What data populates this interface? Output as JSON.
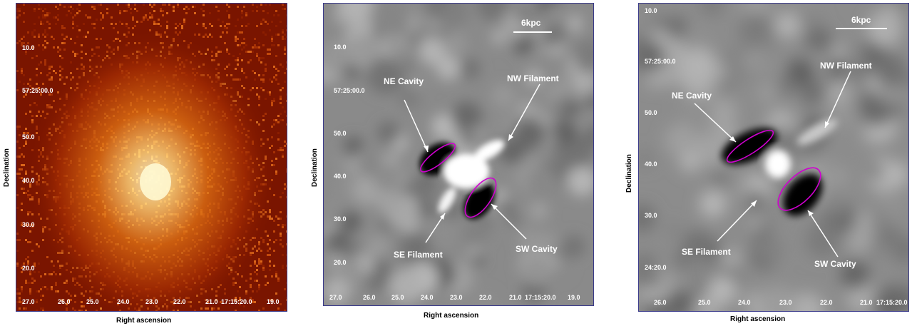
{
  "panels": [
    {
      "xlabel": "Right ascension",
      "ylabel": "Declination",
      "ra_ticks": [
        "27.0",
        "26.0",
        "25.0",
        "24.0",
        "23.0",
        "22.0",
        "21.0",
        "17:15:20.0",
        "19.0"
      ],
      "dec_ticks": [
        "10.0",
        "57:25:00.0",
        "50.0",
        "40.0",
        "30.0",
        "20.0"
      ]
    },
    {
      "xlabel": "Right ascension",
      "ylabel": "Declination",
      "scale": "6kpc",
      "ra_ticks": [
        "27.0",
        "26.0",
        "25.0",
        "24.0",
        "23.0",
        "22.0",
        "21.0",
        "17:15:20.0",
        "19.0"
      ],
      "dec_ticks": [
        "10.0",
        "57:25:00.0",
        "50.0",
        "40.0",
        "30.0",
        "20.0"
      ],
      "annotations": {
        "ne_cavity": "NE Cavity",
        "nw_filament": "NW Filament",
        "se_filament": "SE Filament",
        "sw_cavity": "SW Cavity"
      }
    },
    {
      "xlabel": "Right ascension",
      "ylabel": "Declination",
      "scale": "6kpc",
      "ra_ticks": [
        "26.0",
        "25.0",
        "24.0",
        "23.0",
        "22.0",
        "21.0",
        "17:15:20.0"
      ],
      "dec_ticks": [
        "10.0",
        "57:25:00.0",
        "50.0",
        "40.0",
        "30.0",
        "24:20.0"
      ],
      "annotations": {
        "ne_cavity": "NE Cavity",
        "nw_filament": "NW Filament",
        "se_filament": "SE Filament",
        "sw_cavity": "SW Cavity"
      }
    }
  ],
  "colors": {
    "xray_bg": "#7a1500",
    "xray_mid": "#c84a0a",
    "xray_core": "#fff8d0",
    "cavity_outline": "#d000d0",
    "annotation": "#ffffff"
  }
}
